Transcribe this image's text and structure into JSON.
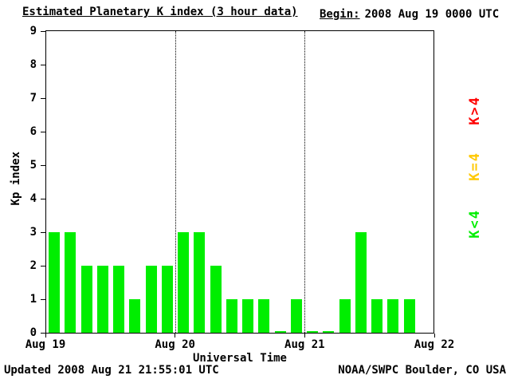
{
  "title": "Estimated Planetary K index (3 hour data)",
  "begin": {
    "label": "Begin:",
    "value": "2008 Aug 19 0000 UTC"
  },
  "axes": {
    "ylabel": "Kp index",
    "xlabel": "Universal Time"
  },
  "legend": [
    {
      "label": "K>4",
      "color": "#ff0000"
    },
    {
      "label": "K=4",
      "color": "#ffc800"
    },
    {
      "label": "K<4",
      "color": "#00ee00"
    }
  ],
  "footer": {
    "updated": "Updated 2008 Aug 21 21:55:01 UTC",
    "source": "NOAA/SWPC Boulder, CO USA"
  },
  "chart_data": {
    "type": "bar",
    "title": "Estimated Planetary K index (3 hour data)",
    "xlabel": "Universal Time",
    "ylabel": "Kp index",
    "ylim": [
      0,
      9
    ],
    "yticks": [
      0,
      1,
      2,
      3,
      4,
      5,
      6,
      7,
      8,
      9
    ],
    "x_tick_labels": [
      "Aug 19",
      "Aug 20",
      "Aug 21",
      "Aug 22"
    ],
    "days": 3,
    "slots_per_day": 8,
    "interval_hours": 3,
    "begin_utc": "2008 Aug 19 0000 UTC",
    "values": [
      3,
      3,
      2,
      2,
      2,
      1,
      2,
      2,
      3,
      3,
      2,
      1,
      1,
      1,
      0,
      1,
      0,
      0,
      1,
      3,
      1,
      1,
      1
    ],
    "bar_colors": {
      "below4": "#00ee00",
      "equal4": "#ffc800",
      "above4": "#ff0000"
    },
    "grid": "dotted vertical lines at day boundaries",
    "legend_position": "right, rotated 90deg"
  }
}
